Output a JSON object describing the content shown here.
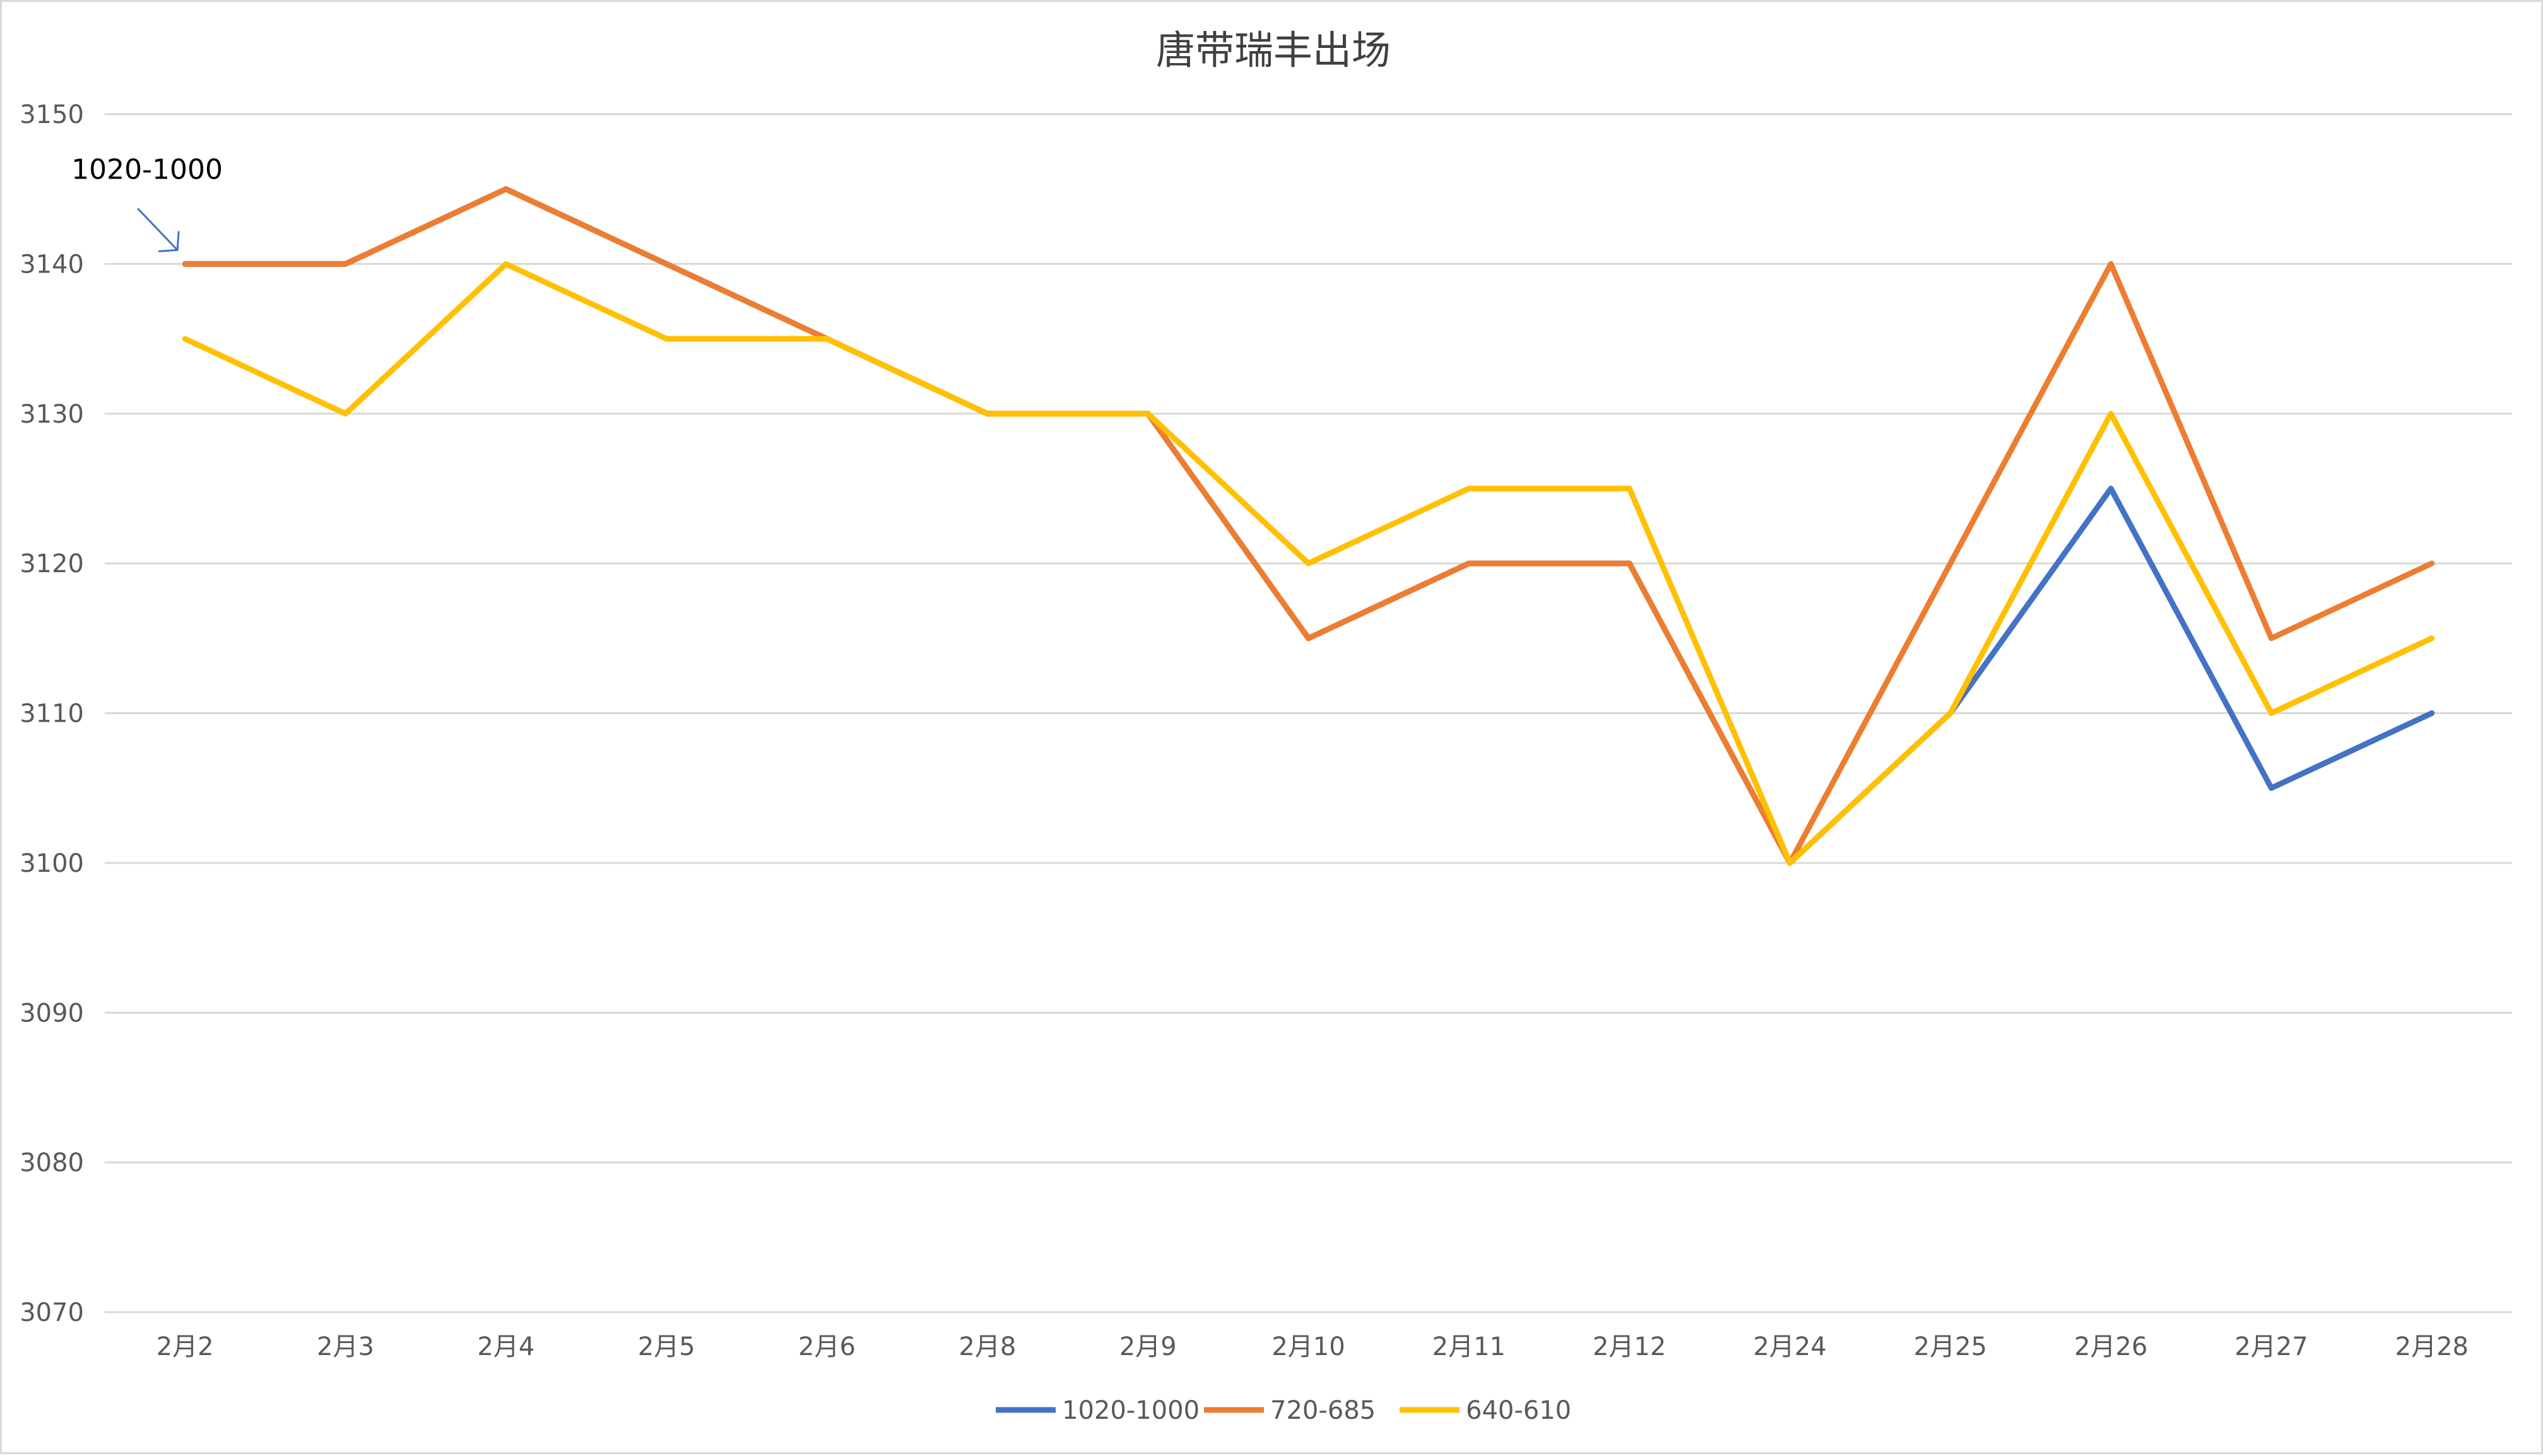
{
  "chart_data": {
    "type": "line",
    "title": "唐带瑞丰出场",
    "xlabel": "",
    "ylabel": "",
    "categories": [
      "2月2",
      "2月3",
      "2月4",
      "2月5",
      "2月6",
      "2月8",
      "2月9",
      "2月10",
      "2月11",
      "2月12",
      "2月24",
      "2月25",
      "2月26",
      "2月27",
      "2月28"
    ],
    "ylim": [
      3070,
      3150
    ],
    "yticks": [
      3070,
      3080,
      3090,
      3100,
      3110,
      3120,
      3130,
      3140,
      3150
    ],
    "grid": true,
    "legend_position": "bottom",
    "series": [
      {
        "name": "1020-1000",
        "color": "#4472C4",
        "values": [
          3140,
          3140,
          3145,
          3140,
          3135,
          3130,
          3130,
          3115,
          3120,
          3120,
          3100,
          3110,
          3125,
          3105,
          3110
        ]
      },
      {
        "name": "720-685",
        "color": "#ED7D31",
        "values": [
          3140,
          3140,
          3145,
          3140,
          3135,
          3130,
          3130,
          3115,
          3120,
          3120,
          3100,
          3120,
          3140,
          3115,
          3120
        ]
      },
      {
        "name": "640-610",
        "color": "#FFC000",
        "values": [
          3135,
          3130,
          3140,
          3135,
          3135,
          3130,
          3130,
          3120,
          3125,
          3125,
          3100,
          3110,
          3130,
          3110,
          3115
        ]
      }
    ],
    "annotations": [
      {
        "text": "1020-1000",
        "series": "1020-1000",
        "category": "2月2",
        "arrow": true
      }
    ]
  }
}
